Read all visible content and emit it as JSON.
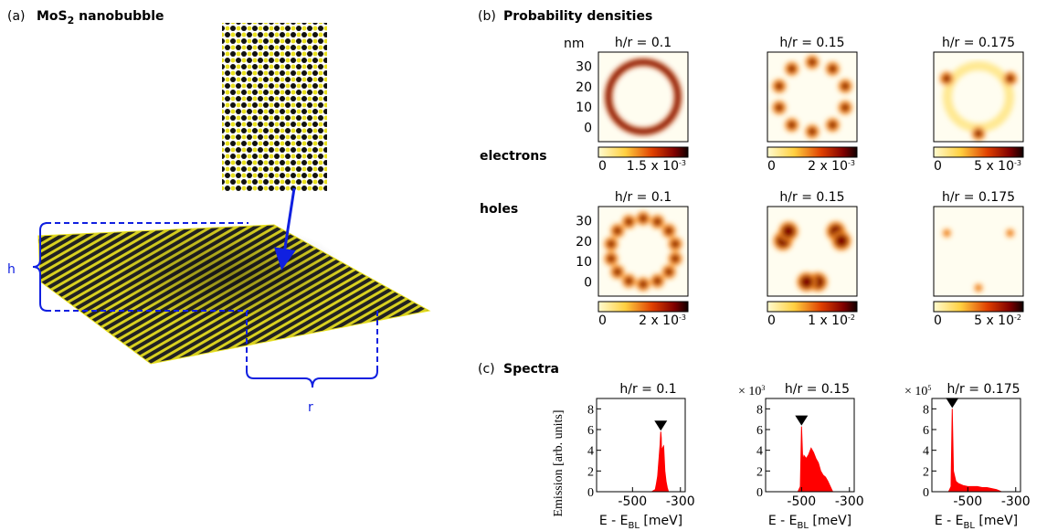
{
  "panel_a": {
    "label": "(a)",
    "title": "MoS",
    "title_sub": "2",
    "title_rest": " nanobubble",
    "h": "h",
    "r": "r"
  },
  "panel_b": {
    "label": "(b)",
    "title": "Probability densities",
    "unit": "nm",
    "yticks": [
      0,
      10,
      20,
      30
    ],
    "ylim": [
      -7,
      37
    ],
    "rows": [
      {
        "name": "electrons",
        "maps": [
          {
            "title": "h/r = 0.1",
            "cbar_min": 0,
            "cbar_label": {
              "text": "1.5 x 10",
              "exp": "-3"
            }
          },
          {
            "title": "h/r = 0.15",
            "cbar_min": 0,
            "cbar_label": {
              "text": "2 x 10",
              "exp": "-3"
            }
          },
          {
            "title": "h/r = 0.175",
            "cbar_min": 0,
            "cbar_label": {
              "text": "5 x 10",
              "exp": "-3"
            }
          }
        ]
      },
      {
        "name": "holes",
        "maps": [
          {
            "title": "h/r = 0.1",
            "cbar_min": 0,
            "cbar_label": {
              "text": "2 x 10",
              "exp": "-3"
            }
          },
          {
            "title": "h/r = 0.15",
            "cbar_min": 0,
            "cbar_label": {
              "text": "1 x 10",
              "exp": "-2"
            }
          },
          {
            "title": "h/r = 0.175",
            "cbar_min": 0,
            "cbar_label": {
              "text": "5 x 10",
              "exp": "-2"
            }
          }
        ]
      }
    ]
  },
  "panel_c": {
    "label": "(c)",
    "title": "Spectra"
  },
  "chart_data": [
    {
      "type": "area",
      "title": "h/r = 0.1",
      "ylabel": "Emission [arb. units]",
      "xlabel": {
        "main": "E - E",
        "sub": "BL",
        "rest": " [meV]"
      },
      "color": "#ff0000",
      "xlim": [
        -650,
        -280
      ],
      "ylim": [
        0,
        9
      ],
      "xticks": [
        -500,
        -300
      ],
      "yticks": [
        0,
        2,
        4,
        6,
        8
      ],
      "x": [
        -650,
        -420,
        -405,
        -400,
        -395,
        -390,
        -385,
        -382,
        -380,
        -378,
        -375,
        -370,
        -365,
        -360,
        -355,
        -350,
        -280
      ],
      "values": [
        0,
        0,
        0.2,
        0.8,
        1.5,
        3,
        4.5,
        5.8,
        5.2,
        3,
        4.2,
        4.4,
        2,
        1,
        0.4,
        0,
        0
      ]
    },
    {
      "type": "area",
      "title": "h/r = 0.15",
      "multiplier": {
        "text": "× 10",
        "exp": "3"
      },
      "xlabel": {
        "main": "E - E",
        "sub": "BL",
        "rest": " [meV]"
      },
      "color": "#ff0000",
      "xlim": [
        -650,
        -280
      ],
      "ylim": [
        0,
        9
      ],
      "xticks": [
        -500,
        -300
      ],
      "yticks": [
        0,
        2,
        4,
        6,
        8
      ],
      "x": [
        -650,
        -515,
        -505,
        -500,
        -495,
        -490,
        -480,
        -470,
        -460,
        -450,
        -440,
        -430,
        -420,
        -410,
        -400,
        -390,
        -380,
        -370,
        -280
      ],
      "values": [
        0,
        0,
        0.5,
        6.3,
        3,
        3.5,
        3.2,
        3.6,
        4.2,
        3.8,
        3.2,
        2.8,
        2,
        1.6,
        1.4,
        1,
        0.5,
        0,
        0
      ]
    },
    {
      "type": "area",
      "title": "h/r = 0.175",
      "multiplier": {
        "text": "× 10",
        "exp": "5"
      },
      "xlabel": {
        "main": "E - E",
        "sub": "BL",
        "rest": " [meV]"
      },
      "color": "#ff0000",
      "xlim": [
        -650,
        -280
      ],
      "ylim": [
        0,
        9
      ],
      "xticks": [
        -500,
        -300
      ],
      "yticks": [
        0,
        2,
        4,
        6,
        8
      ],
      "x": [
        -650,
        -580,
        -570,
        -565,
        -560,
        -555,
        -550,
        -540,
        -520,
        -500,
        -480,
        -460,
        -440,
        -420,
        -400,
        -380,
        -360,
        -280
      ],
      "values": [
        0,
        0,
        0.5,
        8,
        2,
        1.5,
        1,
        0.8,
        0.6,
        0.5,
        0.5,
        0.5,
        0.4,
        0.4,
        0.3,
        0.2,
        0,
        0
      ]
    }
  ]
}
